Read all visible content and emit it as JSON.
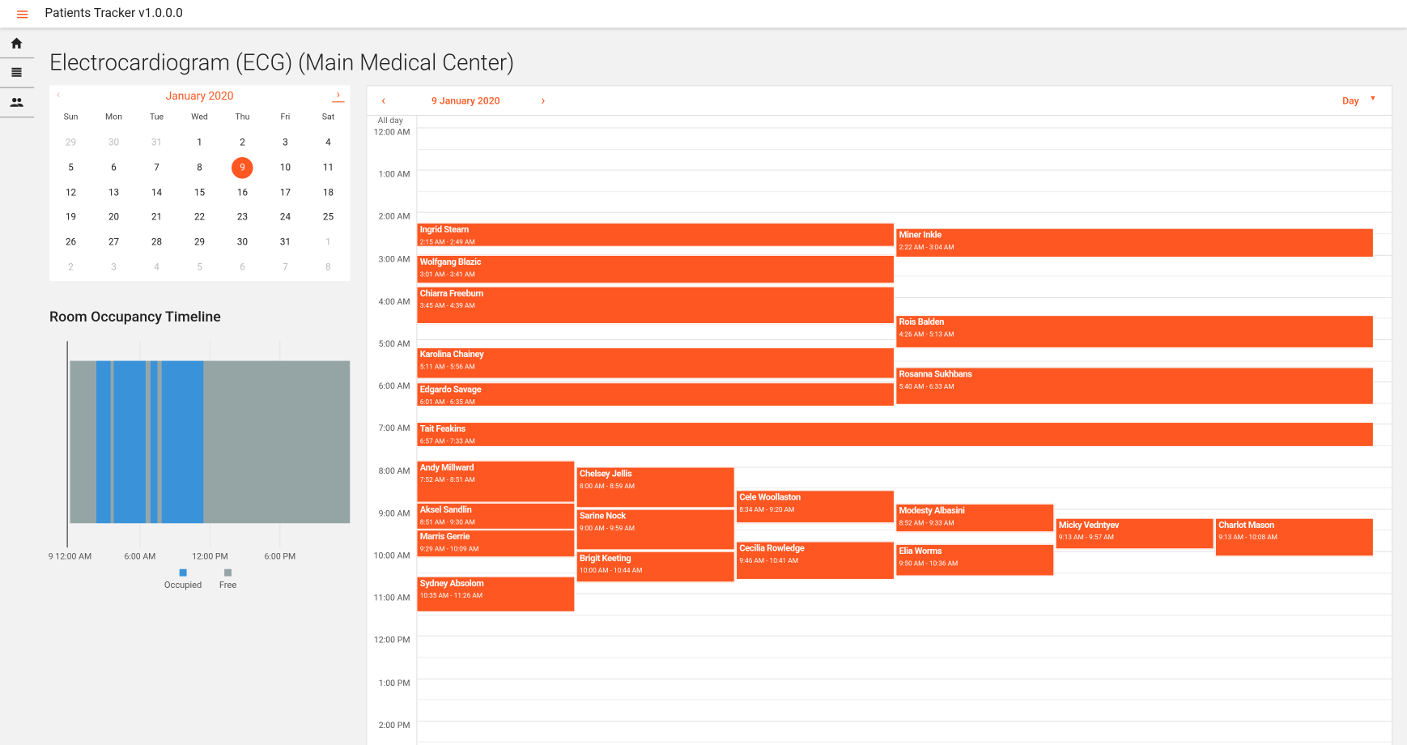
{
  "app_title": "Patients Tracker v1.0.0.0",
  "heading": "Electrocardiogram (ECG) (Main Medical Center)",
  "mini_calendar": {
    "month": "January 2020",
    "weekdays": [
      "Sun",
      "Mon",
      "Tue",
      "Wed",
      "Thu",
      "Fri",
      "Sat"
    ],
    "weeks": [
      [
        "29",
        "30",
        "31",
        "1",
        "2",
        "3",
        "4"
      ],
      [
        "5",
        "6",
        "7",
        "8",
        "9",
        "10",
        "11"
      ],
      [
        "12",
        "13",
        "14",
        "15",
        "16",
        "17",
        "18"
      ],
      [
        "19",
        "20",
        "21",
        "22",
        "23",
        "24",
        "25"
      ],
      [
        "26",
        "27",
        "28",
        "29",
        "30",
        "31",
        "1"
      ],
      [
        "2",
        "3",
        "4",
        "5",
        "6",
        "7",
        "8"
      ]
    ]
  },
  "timeline": {
    "title": "Room Occupancy Timeline",
    "xlim": [
      0,
      24
    ],
    "xticks": [
      {
        "value": 0,
        "label": "9 12:00 AM"
      },
      {
        "value": 6,
        "label": "6:00 AM"
      },
      {
        "value": 12,
        "label": "12:00 PM"
      },
      {
        "value": 18,
        "label": "6:00 PM"
      }
    ],
    "series": [
      {
        "name": "Occupied",
        "color": "#3a92d8"
      },
      {
        "name": "Free",
        "color": "#95a5a6"
      }
    ],
    "segments": [
      {
        "series": 1,
        "start": 0,
        "end": 2.25
      },
      {
        "series": 0,
        "start": 2.25,
        "end": 3.5
      },
      {
        "series": 1,
        "start": 3.5,
        "end": 3.75
      },
      {
        "series": 0,
        "start": 3.75,
        "end": 6.5
      },
      {
        "series": 1,
        "start": 6.5,
        "end": 6.9
      },
      {
        "series": 0,
        "start": 6.9,
        "end": 7.5
      },
      {
        "series": 1,
        "start": 7.5,
        "end": 7.85
      },
      {
        "series": 0,
        "start": 7.85,
        "end": 11.45
      },
      {
        "series": 1,
        "start": 11.45,
        "end": 24
      }
    ]
  },
  "scheduler": {
    "date": "9 January 2020",
    "view": "Day",
    "all_day": "All day",
    "hours": [
      "12:00 AM",
      "1:00 AM",
      "2:00 AM",
      "3:00 AM",
      "4:00 AM",
      "5:00 AM",
      "6:00 AM",
      "7:00 AM",
      "8:00 AM",
      "9:00 AM",
      "10:00 AM",
      "11:00 AM",
      "12:00 PM",
      "1:00 PM",
      "2:00 PM"
    ],
    "events": [
      {
        "name": "Ingrid Stearn",
        "time": "2:15 AM - 2:49 AM"
      },
      {
        "name": "Miner Inkle",
        "time": "2:22 AM - 3:04 AM"
      },
      {
        "name": "Wolfgang Blazic",
        "time": "3:01 AM - 3:41 AM"
      },
      {
        "name": "Chiarra Freeburn",
        "time": "3:45 AM - 4:39 AM"
      },
      {
        "name": "Rois Balden",
        "time": "4:26 AM - 5:13 AM"
      },
      {
        "name": "Karolina Chainey",
        "time": "5:11 AM - 5:56 AM"
      },
      {
        "name": "Rosanna Sukhbans",
        "time": "5:40 AM - 6:33 AM"
      },
      {
        "name": "Edgardo Savage",
        "time": "6:01 AM - 6:35 AM"
      },
      {
        "name": "Tait Feakins",
        "time": "6:57 AM - 7:33 AM"
      },
      {
        "name": "Andy Millward",
        "time": "7:52 AM - 8:51 AM"
      },
      {
        "name": "Chelsey Jellis",
        "time": "8:00 AM - 8:59 AM"
      },
      {
        "name": "Aksel Sandlin",
        "time": "8:51 AM - 9:30 AM"
      },
      {
        "name": "Sarine Nock",
        "time": "9:00 AM - 9:59 AM"
      },
      {
        "name": "Cele Woollaston",
        "time": "8:34 AM - 9:20 AM"
      },
      {
        "name": "Modesty Albasini",
        "time": "8:52 AM - 9:33 AM"
      },
      {
        "name": "Micky Vedntyev",
        "time": "9:13 AM - 9:57 AM"
      },
      {
        "name": "Charlot Mason",
        "time": "9:13 AM - 10:08 AM"
      },
      {
        "name": "Marris Gerrie",
        "time": "9:29 AM - 10:09 AM"
      },
      {
        "name": "Cecilia Rowledge",
        "time": "9:46 AM - 10:41 AM"
      },
      {
        "name": "Elia Worms",
        "time": "9:50 AM - 10:36 AM"
      },
      {
        "name": "Brigit Keeting",
        "time": "10:00 AM - 10:44 AM"
      },
      {
        "name": "Sydney Absolom",
        "time": "10:35 AM - 11:26 AM"
      }
    ]
  }
}
